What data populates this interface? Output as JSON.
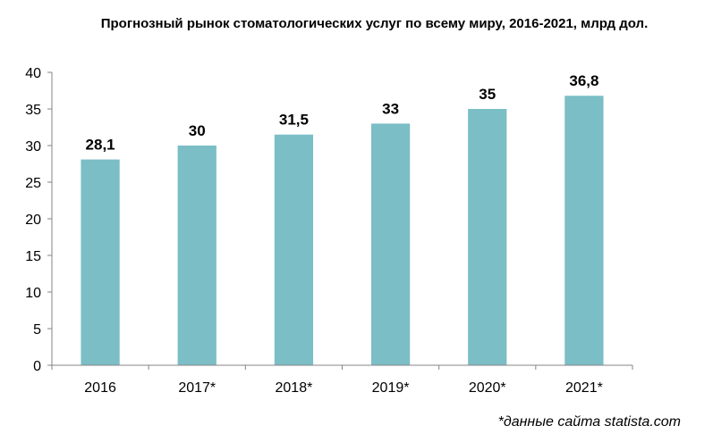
{
  "chart_data": {
    "type": "bar",
    "title": "Прогнозный рынок стоматологических услуг по всему миру, 2016-2021, млрд дол.",
    "categories": [
      "2016",
      "2017*",
      "2018*",
      "2019*",
      "2020*",
      "2021*"
    ],
    "values": [
      28.1,
      30,
      31.5,
      33,
      35,
      36.8
    ],
    "value_labels": [
      "28,1",
      "30",
      "31,5",
      "33",
      "35",
      "36,8"
    ],
    "ylim": [
      0,
      40
    ],
    "yticks": [
      0,
      5,
      10,
      15,
      20,
      25,
      30,
      35,
      40
    ],
    "xlabel": "",
    "ylabel": "",
    "grid": false,
    "bar_color": "#7bbec6",
    "footnote": "*данные сайта statista.com"
  }
}
